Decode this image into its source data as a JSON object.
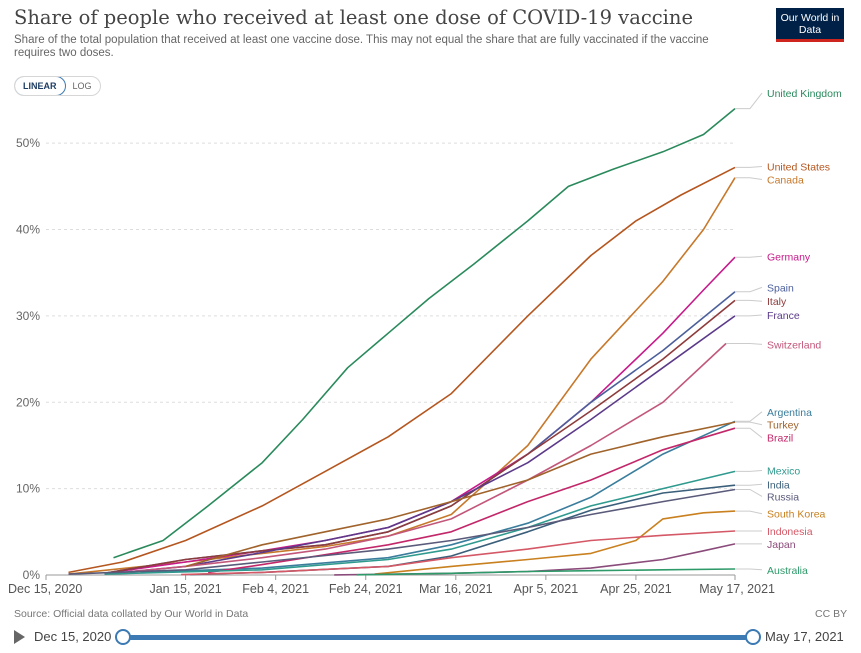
{
  "header": {
    "title": "Share of people who received at least one dose of COVID-19 vaccine",
    "subtitle": "Share of the total population that received at least one vaccine dose. This may not equal the share that are fully vaccinated if the vaccine requires two doses.",
    "logo": "Our World in Data"
  },
  "toggle": {
    "linear": "LINEAR",
    "log": "LOG",
    "selected": "LINEAR"
  },
  "footer": {
    "source": "Source: Official data collated by Our World in Data",
    "license": "CC BY"
  },
  "timeline": {
    "start": "Dec 15, 2020",
    "end": "May 17, 2021",
    "start_fraction": 0,
    "end_fraction": 1
  },
  "chart_data": {
    "type": "line",
    "title": "Share of people who received at least one dose of COVID-19 vaccine",
    "xlabel": "",
    "ylabel": "",
    "x_type": "date",
    "xlim": [
      "2020-12-15",
      "2021-05-17"
    ],
    "ylim": [
      0,
      55
    ],
    "y_ticks": [
      0,
      10,
      20,
      30,
      40,
      50
    ],
    "y_tick_labels": [
      "0%",
      "10%",
      "20%",
      "30%",
      "40%",
      "50%"
    ],
    "x_ticks": [
      "2020-12-15",
      "2021-01-15",
      "2021-02-04",
      "2021-02-24",
      "2021-03-16",
      "2021-04-05",
      "2021-04-25",
      "2021-05-17"
    ],
    "x_tick_labels": [
      "Dec 15, 2020",
      "Jan 15, 2021",
      "Feb 4, 2021",
      "Feb 24, 2021",
      "Mar 16, 2021",
      "Apr 5, 2021",
      "Apr 25, 2021",
      "May 17, 2021"
    ],
    "grid": "horizontal dashed",
    "legend": "right, labels at line ends",
    "series": [
      {
        "name": "United Kingdom",
        "color": "#2a8a5c",
        "x": [
          "2020-12-30",
          "2021-01-10",
          "2021-01-20",
          "2021-02-01",
          "2021-02-10",
          "2021-02-20",
          "2021-03-01",
          "2021-03-10",
          "2021-03-20",
          "2021-04-01",
          "2021-04-10",
          "2021-04-20",
          "2021-05-01",
          "2021-05-10",
          "2021-05-17"
        ],
        "y": [
          2,
          4,
          8,
          13,
          18,
          24,
          28,
          32,
          36,
          41,
          45,
          47,
          49,
          51,
          54
        ]
      },
      {
        "name": "United States",
        "color": "#b5561f",
        "x": [
          "2020-12-20",
          "2021-01-01",
          "2021-01-15",
          "2021-02-01",
          "2021-02-15",
          "2021-03-01",
          "2021-03-15",
          "2021-04-01",
          "2021-04-15",
          "2021-04-25",
          "2021-05-05",
          "2021-05-17"
        ],
        "y": [
          0.3,
          1.5,
          4,
          8,
          12,
          16,
          21,
          30,
          37,
          41,
          44,
          47.2
        ]
      },
      {
        "name": "Canada",
        "color": "#c7782a",
        "x": [
          "2020-12-20",
          "2021-01-15",
          "2021-02-01",
          "2021-02-15",
          "2021-03-01",
          "2021-03-15",
          "2021-04-01",
          "2021-04-15",
          "2021-05-01",
          "2021-05-10",
          "2021-05-17"
        ],
        "y": [
          0.1,
          1.5,
          2.5,
          3.3,
          4.5,
          7,
          15,
          25,
          34,
          40,
          46
        ]
      },
      {
        "name": "Germany",
        "color": "#c71a8a",
        "x": [
          "2020-12-28",
          "2021-01-15",
          "2021-02-01",
          "2021-02-15",
          "2021-03-01",
          "2021-03-15",
          "2021-04-01",
          "2021-04-15",
          "2021-05-01",
          "2021-05-10",
          "2021-05-17"
        ],
        "y": [
          0.2,
          1.5,
          2.8,
          4,
          5.5,
          8.5,
          14,
          20,
          28,
          33,
          36.8
        ]
      },
      {
        "name": "Spain",
        "color": "#4b5f9b",
        "x": [
          "2020-12-28",
          "2021-01-15",
          "2021-02-01",
          "2021-02-15",
          "2021-03-01",
          "2021-03-15",
          "2021-04-01",
          "2021-04-15",
          "2021-05-01",
          "2021-05-17"
        ],
        "y": [
          0.2,
          1.8,
          2.8,
          3.5,
          5,
          8,
          14,
          20,
          26,
          32.8
        ]
      },
      {
        "name": "Italy",
        "color": "#8e3b3b",
        "x": [
          "2020-12-28",
          "2021-01-15",
          "2021-02-01",
          "2021-02-15",
          "2021-03-01",
          "2021-03-15",
          "2021-04-01",
          "2021-04-15",
          "2021-05-01",
          "2021-05-17"
        ],
        "y": [
          0.2,
          1.8,
          2.8,
          3.5,
          5,
          8,
          14,
          19,
          25,
          31.8
        ]
      },
      {
        "name": "France",
        "color": "#5b3a8a",
        "x": [
          "2020-12-28",
          "2021-01-15",
          "2021-02-01",
          "2021-02-15",
          "2021-03-01",
          "2021-03-15",
          "2021-04-01",
          "2021-04-15",
          "2021-05-01",
          "2021-05-17"
        ],
        "y": [
          0.1,
          1,
          2.6,
          4,
          5.5,
          8.5,
          13,
          18,
          24,
          30
        ]
      },
      {
        "name": "Switzerland",
        "color": "#c2577a",
        "x": [
          "2020-12-28",
          "2021-01-15",
          "2021-02-01",
          "2021-02-15",
          "2021-03-01",
          "2021-03-15",
          "2021-04-01",
          "2021-04-15",
          "2021-05-01",
          "2021-05-15"
        ],
        "y": [
          0.1,
          1,
          2,
          3,
          4.5,
          6.5,
          11,
          15,
          20,
          26.8
        ]
      },
      {
        "name": "Argentina",
        "color": "#3a7d9c",
        "x": [
          "2021-01-05",
          "2021-02-01",
          "2021-03-01",
          "2021-03-15",
          "2021-04-01",
          "2021-04-15",
          "2021-05-01",
          "2021-05-17"
        ],
        "y": [
          0.3,
          0.8,
          2,
          3.5,
          6,
          9,
          14,
          17.8
        ]
      },
      {
        "name": "Turkey",
        "color": "#a0632b",
        "x": [
          "2021-01-15",
          "2021-02-01",
          "2021-02-15",
          "2021-03-01",
          "2021-03-15",
          "2021-04-01",
          "2021-04-15",
          "2021-05-01",
          "2021-05-17"
        ],
        "y": [
          1,
          3.5,
          5,
          6.5,
          8.5,
          11,
          14,
          16,
          17.7
        ]
      },
      {
        "name": "Brazil",
        "color": "#c2276a",
        "x": [
          "2021-01-20",
          "2021-02-01",
          "2021-03-01",
          "2021-03-15",
          "2021-04-01",
          "2021-04-15",
          "2021-05-01",
          "2021-05-17"
        ],
        "y": [
          0.3,
          1.2,
          3.5,
          5,
          8.5,
          11,
          14.5,
          17
        ]
      },
      {
        "name": "Mexico",
        "color": "#2f9a8e",
        "x": [
          "2020-12-28",
          "2021-02-01",
          "2021-03-01",
          "2021-03-15",
          "2021-04-01",
          "2021-04-15",
          "2021-05-01",
          "2021-05-17"
        ],
        "y": [
          0.1,
          0.6,
          1.8,
          3,
          5.5,
          8,
          10,
          12
        ]
      },
      {
        "name": "India",
        "color": "#3b5f7a",
        "x": [
          "2021-01-16",
          "2021-02-01",
          "2021-03-01",
          "2021-03-15",
          "2021-04-01",
          "2021-04-15",
          "2021-05-01",
          "2021-05-17"
        ],
        "y": [
          0.05,
          0.3,
          1,
          2.2,
          5,
          7.5,
          9.5,
          10.4
        ]
      },
      {
        "name": "Russia",
        "color": "#5a5a7a",
        "x": [
          "2020-12-20",
          "2021-01-15",
          "2021-02-01",
          "2021-03-01",
          "2021-03-15",
          "2021-04-01",
          "2021-04-15",
          "2021-05-01",
          "2021-05-17"
        ],
        "y": [
          0.1,
          0.6,
          1.5,
          3,
          4,
          5.5,
          7,
          8.5,
          9.9
        ]
      },
      {
        "name": "South Korea",
        "color": "#c9801f",
        "x": [
          "2021-02-26",
          "2021-03-15",
          "2021-04-01",
          "2021-04-15",
          "2021-04-25",
          "2021-05-01",
          "2021-05-10",
          "2021-05-17"
        ],
        "y": [
          0.1,
          1,
          1.8,
          2.5,
          4,
          6.5,
          7.2,
          7.4
        ]
      },
      {
        "name": "Indonesia",
        "color": "#d45866",
        "x": [
          "2021-01-14",
          "2021-02-01",
          "2021-03-01",
          "2021-03-15",
          "2021-04-01",
          "2021-04-15",
          "2021-05-01",
          "2021-05-17"
        ],
        "y": [
          0.05,
          0.3,
          1,
          2,
          3,
          4,
          4.6,
          5.1
        ]
      },
      {
        "name": "Japan",
        "color": "#8a4b7a",
        "x": [
          "2021-02-17",
          "2021-03-15",
          "2021-04-01",
          "2021-04-15",
          "2021-05-01",
          "2021-05-10",
          "2021-05-17"
        ],
        "y": [
          0.01,
          0.2,
          0.4,
          0.8,
          1.8,
          2.8,
          3.6
        ]
      },
      {
        "name": "Australia",
        "color": "#2e9a6a",
        "x": [
          "2021-02-22",
          "2021-03-15",
          "2021-04-01",
          "2021-04-15",
          "2021-05-01",
          "2021-05-17"
        ],
        "y": [
          0.02,
          0.2,
          0.4,
          0.5,
          0.6,
          0.7
        ]
      }
    ],
    "label_anchor_y": [
      55.8,
      47.3,
      45.8,
      36.9,
      33.3,
      31.7,
      30.1,
      26.7,
      18.9,
      17.4,
      15.9,
      12.1,
      10.5,
      9.1,
      7.1,
      5.1,
      3.6,
      0.6
    ]
  }
}
